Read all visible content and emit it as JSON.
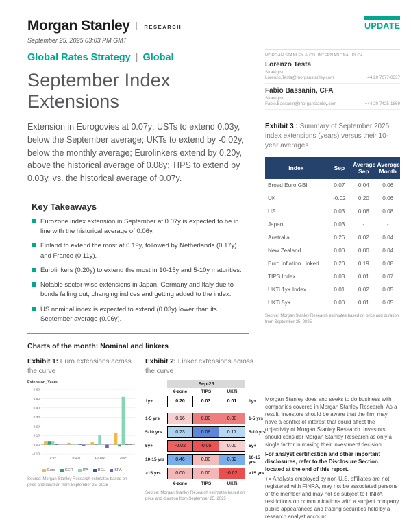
{
  "colors": {
    "accent": "#00A88C",
    "navy": "#24426B"
  },
  "header": {
    "brand": "Morgan Stanley",
    "division": "RESEARCH",
    "update_label": "UPDATE",
    "date": "September 25, 2025 03:03 PM GMT",
    "section": "Global Rates Strategy",
    "section_divider": "|",
    "region": "Global",
    "title": "September Index Extensions"
  },
  "lead": "Extension in Eurogovies at 0.07y; USTs to extend 0.03y, below the September average; UKTs to extend by -0.02y, below the monthly average; Eurolinkers extend by 0.20y, above the historical average of 0.08y; TIPS to extend by 0.03y, vs. the historical average of 0.07y.",
  "key_takeaways": {
    "heading": "Key Takeaways",
    "bullets": [
      "Eurozone index extension in September at 0.07y is expected to be in line with the historical average of 0.06y.",
      "Finland to extend the most at 0.19y, followed by Netherlands (0.17y) and France (0.11y).",
      "Eurolinkers (0.20y) to extend the most in 10-15y and 5-10y maturities.",
      "Notable sector-wise extensions in Japan, Germany and Italy due to bonds falling out, changing indices and getting added to the index.",
      "US nominal index is expected to extend (0.03y) lower than its September average (0.06y)."
    ]
  },
  "charts_section_heading": "Charts of the month: Nominal and linkers",
  "exhibit1": {
    "label": "Exhibit 1:",
    "caption": "Euro extensions across the curve",
    "source": "Source: Morgan Stanley Research estimates based on price and duration from September 25, 2025"
  },
  "exhibit2": {
    "label": "Exhibit 2:",
    "caption": "Linker extensions across the curve",
    "source": "Source: Morgan Stanley Research estimates based on price and duration from September 25, 2025"
  },
  "sidebar": {
    "firm": "MORGAN STANLEY & CO. INTERNATIONAL PLC+",
    "analysts": [
      {
        "name": "Lorenzo Testa",
        "role": "Strategist",
        "email": "Lorenzo.Testa@morganstanley.com",
        "phone": "+44 20 7677-0337"
      },
      {
        "name": "Fabio Bassanin, CFA",
        "role": "Strategist",
        "email": "Fabio.Bassanin@morganstanley.com",
        "phone": "+44 20 7425-1869"
      }
    ]
  },
  "exhibit3": {
    "label": "Exhibit 3 :",
    "caption": "Summary of September 2025 index extensions (years) versus their 10-year averages",
    "table": {
      "headers": [
        "Index",
        "Sep",
        "Average Sep",
        "Average Month"
      ],
      "rows": [
        [
          "Broad Euro GBI",
          "0.07",
          "0.04",
          "0.06"
        ],
        [
          "UK",
          "-0.02",
          "0.20",
          "0.06"
        ],
        [
          "US",
          "0.03",
          "0.06",
          "0.08"
        ],
        [
          "Japan",
          "0.03",
          "-",
          "-"
        ],
        [
          "Australia",
          "0.26",
          "0.02",
          "0.04"
        ],
        [
          "New Zealand",
          "0.00",
          "0.00",
          "0.04"
        ],
        [
          "Euro Inflation Linked",
          "0.20",
          "0.19",
          "0.08"
        ],
        [
          "TIPS Index",
          "0.03",
          "0.01",
          "0.07"
        ],
        [
          "UKTi 1y+ Index",
          "0.01",
          "0.02",
          "0.05"
        ],
        [
          "UKTi 5y+",
          "0.00",
          "0.01",
          "0.05"
        ]
      ]
    },
    "source": "Source: Morgan Stanley Research estimates based on price and duration from September 25, 2025"
  },
  "disclaimer": {
    "p1": "Morgan Stanley does and seeks to do business with companies covered in Morgan Stanley Research. As a result, investors should be aware that the firm may have a conflict of interest that could affect the objectivity of Morgan Stanley Research. Investors should consider Morgan Stanley Research as only a single factor in making their investment decision.",
    "p2": "For analyst certification and other important disclosures, refer to the Disclosure Section, located at the end of this report.",
    "p3": "+= Analysts employed by non-U.S. affiliates are not registered with FINRA, may not be associated persons of the member and may not be subject to FINRA restrictions on communications with a subject company, public appearances and trading securities held by a research analyst account."
  },
  "chart_data": [
    {
      "type": "bar",
      "ylabel": "Extension, Years",
      "categories": [
        "1-5y",
        "5-10y",
        "10-15y",
        "15y+"
      ],
      "series": [
        {
          "name": "Euro",
          "color": "#EDBA4B",
          "values": [
            0.04,
            0.02,
            0.03,
            0.13
          ]
        },
        {
          "name": "GER",
          "color": "#2FA268",
          "values": [
            0.04,
            0.0,
            0.01,
            -0.02
          ]
        },
        {
          "name": "ITA",
          "color": "#83D7B5",
          "values": [
            0.04,
            0.0,
            0.1,
            0.52
          ]
        },
        {
          "name": "BEL",
          "color": "#2B5DA8",
          "values": [
            0.01,
            0.01,
            0.0,
            0.01
          ]
        },
        {
          "name": "SPA",
          "color": "#6F5FC0",
          "values": [
            0.0,
            -0.01,
            -0.04,
            0.01
          ]
        }
      ],
      "ylim": [
        -0.1,
        0.6
      ],
      "yticks": [
        0.6,
        0.5,
        0.4,
        0.3,
        0.2,
        0.1,
        0.0,
        -0.1
      ],
      "grid": true,
      "legend_position": "bottom"
    },
    {
      "type": "heatmap",
      "title": "Sep-25",
      "columns": [
        "€-zone",
        "TIPS",
        "UKTi"
      ],
      "rows": [
        {
          "label": "1y+",
          "values": [
            "0.20",
            "0.03",
            "0.01"
          ],
          "colors": [
            "#FFFFFF",
            "#FFFFFF",
            "#FFFFFF"
          ],
          "emphasis": true
        },
        {
          "label": "1-5 yrs",
          "values": [
            "0.16",
            "0.00",
            "0.00"
          ],
          "colors": [
            "#F7CFCF",
            "#EE7D7D",
            "#EE7D7D"
          ]
        },
        {
          "label": "5-10 yrs",
          "values": [
            "0.23",
            "0.08",
            "0.17"
          ],
          "colors": [
            "#ADD2F0",
            "#5C86D8",
            "#B6D8F2"
          ]
        },
        {
          "label": "5y+",
          "values": [
            "-0.02",
            "-0.05",
            "0.00"
          ],
          "colors": [
            "#EC6161",
            "#EA5353",
            "#F7CFCF"
          ]
        },
        {
          "label": "10-15 yrs",
          "values": [
            "0.46",
            "0.00",
            "0.32"
          ],
          "colors": [
            "#79ACEA",
            "#F3BDBD",
            "#79ACEA"
          ]
        },
        {
          "label": ">15 yrs",
          "values": [
            "0.00",
            "0.00",
            "-0.02"
          ],
          "colors": [
            "#F2B8B8",
            "#F2B8B8",
            "#E94F4F"
          ]
        }
      ]
    }
  ]
}
